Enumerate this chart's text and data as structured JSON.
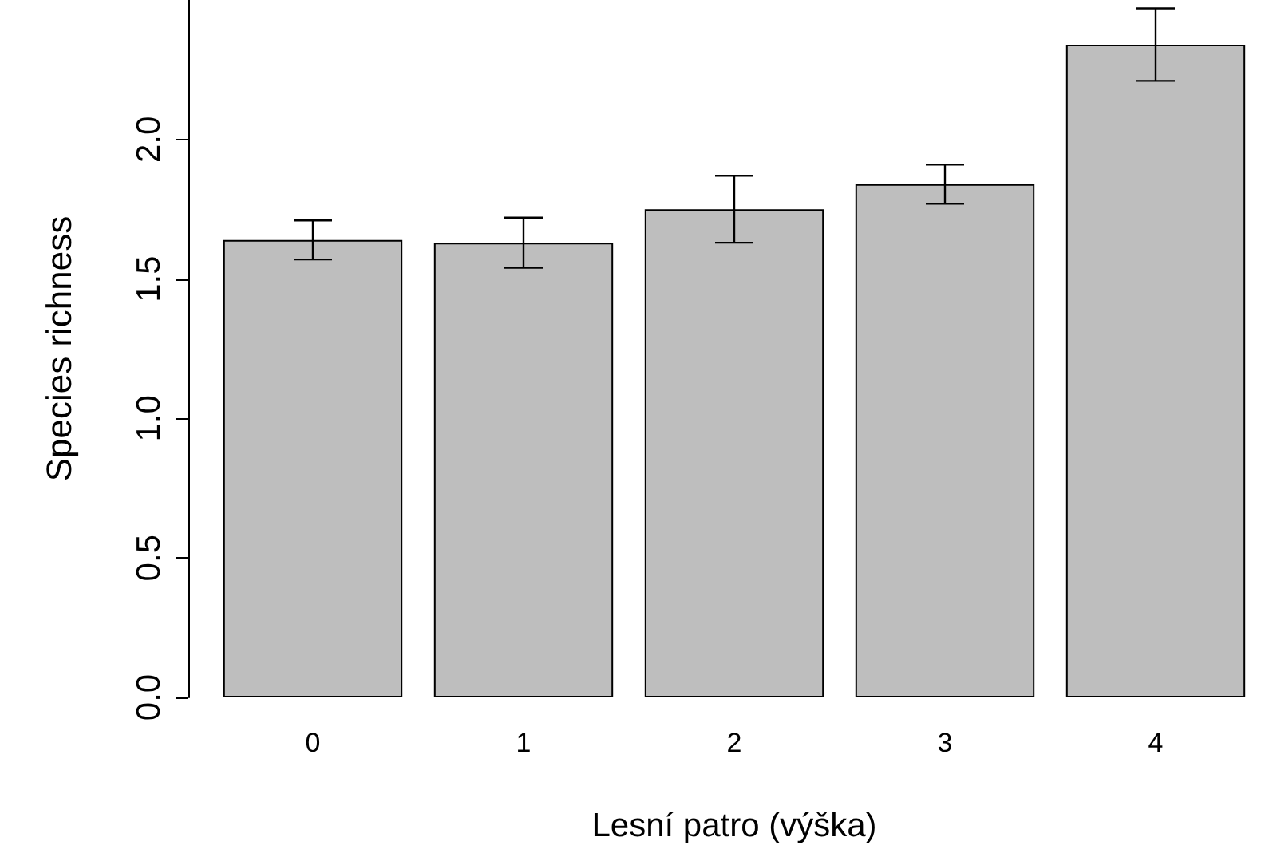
{
  "chart_data": {
    "type": "bar",
    "xlabel": "Lesní patro (výška)",
    "ylabel": "Species richness",
    "categories": [
      "0",
      "1",
      "2",
      "3",
      "4"
    ],
    "values": [
      1.64,
      1.63,
      1.75,
      1.84,
      2.34
    ],
    "errors": [
      0.07,
      0.09,
      0.12,
      0.07,
      0.13
    ],
    "color": "#bebebe",
    "ylim": [
      0,
      2.5
    ],
    "yticks": [
      {
        "value": 0,
        "label": "0.0"
      },
      {
        "value": 0.5,
        "label": "0.5"
      },
      {
        "value": 1,
        "label": "1.0"
      },
      {
        "value": 1.5,
        "label": "1.5"
      },
      {
        "value": 2,
        "label": "2.0"
      }
    ],
    "grid": false
  }
}
